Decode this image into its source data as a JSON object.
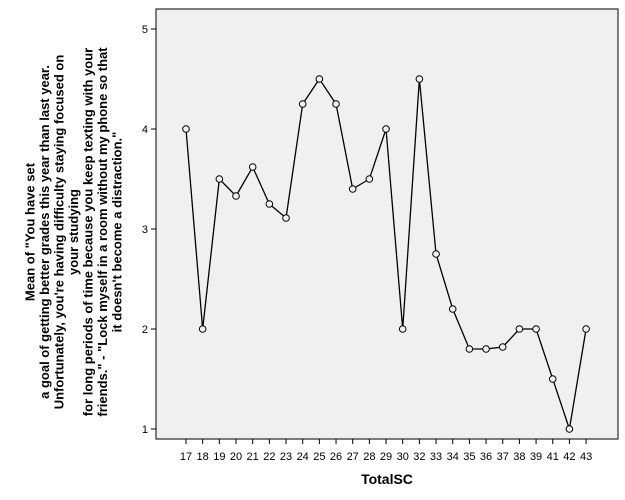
{
  "chart_data": {
    "type": "line",
    "xlabel": "TotalSC",
    "ylabel_lines": [
      "Mean of \"You have set",
      "a goal of getting better grades this year than last year.",
      "Unfortunately, you're having difficulty staying focused on",
      "your studying",
      "for long periods of time because you keep texting with your",
      "friends.\" - \"Lock myself in a room without my phone so that",
      "it doesn't become a distraction.\""
    ],
    "x": [
      "17",
      "18",
      "19",
      "20",
      "21",
      "22",
      "23",
      "24",
      "25",
      "26",
      "27",
      "28",
      "29",
      "30",
      "32",
      "33",
      "34",
      "35",
      "36",
      "37",
      "38",
      "39",
      "41",
      "42",
      "43"
    ],
    "values": [
      4.0,
      2.0,
      3.5,
      3.33,
      3.62,
      3.25,
      3.11,
      4.25,
      4.5,
      4.25,
      3.4,
      3.5,
      4.0,
      2.0,
      4.5,
      2.75,
      2.2,
      1.8,
      1.8,
      1.82,
      2.0,
      2.0,
      1.5,
      1.0,
      2.0
    ],
    "yticks": [
      1,
      2,
      3,
      4,
      5
    ],
    "ylim": [
      0.9,
      5.2
    ],
    "grid": false,
    "colors": {
      "background": "#f0f0f0",
      "line": "#000000",
      "marker_fill": "#f0f0f0"
    }
  }
}
